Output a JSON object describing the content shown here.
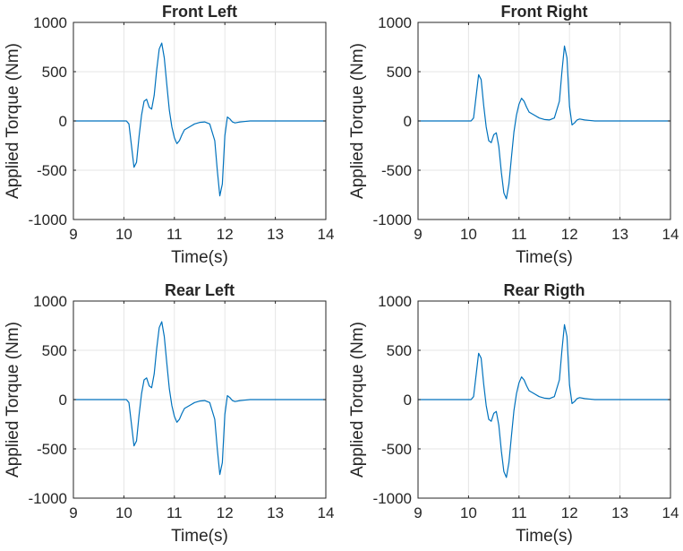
{
  "figure": {
    "background": "#ffffff"
  },
  "style": {
    "line_color": "#0072BD",
    "grid_color": "#e6e6e6",
    "axis_color": "#262626"
  },
  "chart_data": [
    {
      "type": "line",
      "title": "Front Left",
      "xlabel": "Time(s)",
      "ylabel": "Applied Torque (Nm)",
      "xlim": [
        9,
        14
      ],
      "ylim": [
        -1000,
        1000
      ],
      "xticks": [
        "9",
        "10",
        "11",
        "12",
        "13",
        "14"
      ],
      "yticks": [
        "1000",
        "500",
        "0",
        "-500",
        "-1000"
      ],
      "grid": true,
      "series": [
        {
          "x": [
            9,
            10.05,
            10.1,
            10.15,
            10.2,
            10.25,
            10.3,
            10.35,
            10.4,
            10.45,
            10.5,
            10.55,
            10.6,
            10.65,
            10.7,
            10.75,
            10.8,
            10.85,
            10.9,
            10.95,
            11.0,
            11.05,
            11.1,
            11.15,
            11.2,
            11.3,
            11.4,
            11.5,
            11.6,
            11.7,
            11.8,
            11.85,
            11.9,
            11.95,
            12.0,
            12.05,
            12.1,
            12.15,
            12.2,
            12.3,
            12.4,
            12.5,
            14
          ],
          "y": [
            0,
            0,
            -30,
            -250,
            -470,
            -420,
            -160,
            60,
            200,
            220,
            140,
            120,
            260,
            520,
            730,
            790,
            640,
            370,
            110,
            -60,
            -170,
            -230,
            -200,
            -140,
            -90,
            -60,
            -30,
            -15,
            -10,
            -30,
            -200,
            -500,
            -760,
            -640,
            -150,
            40,
            20,
            -10,
            -20,
            -10,
            -5,
            0,
            0
          ]
        }
      ]
    },
    {
      "type": "line",
      "title": "Front Right",
      "xlabel": "Time(s)",
      "ylabel": "Applied Torque (Nm)",
      "xlim": [
        9,
        14
      ],
      "ylim": [
        -1000,
        1000
      ],
      "xticks": [
        "9",
        "10",
        "11",
        "12",
        "13",
        "14"
      ],
      "yticks": [
        "1000",
        "500",
        "0",
        "-500",
        "-1000"
      ],
      "grid": true,
      "series": [
        {
          "x": [
            9,
            10.05,
            10.1,
            10.15,
            10.2,
            10.25,
            10.3,
            10.35,
            10.4,
            10.45,
            10.5,
            10.55,
            10.6,
            10.65,
            10.7,
            10.75,
            10.8,
            10.85,
            10.9,
            10.95,
            11.0,
            11.05,
            11.1,
            11.15,
            11.2,
            11.3,
            11.4,
            11.5,
            11.6,
            11.7,
            11.8,
            11.85,
            11.9,
            11.95,
            12.0,
            12.05,
            12.1,
            12.15,
            12.2,
            12.3,
            12.4,
            12.5,
            14
          ],
          "y": [
            0,
            0,
            30,
            250,
            470,
            420,
            160,
            -60,
            -200,
            -220,
            -140,
            -120,
            -260,
            -520,
            -730,
            -790,
            -640,
            -370,
            -110,
            60,
            170,
            230,
            200,
            140,
            90,
            60,
            30,
            15,
            10,
            30,
            200,
            500,
            760,
            640,
            150,
            -40,
            -20,
            10,
            20,
            10,
            5,
            0,
            0
          ]
        }
      ]
    },
    {
      "type": "line",
      "title": "Rear Left",
      "xlabel": "Time(s)",
      "ylabel": "Applied Torque (Nm)",
      "xlim": [
        9,
        14
      ],
      "ylim": [
        -1000,
        1000
      ],
      "xticks": [
        "9",
        "10",
        "11",
        "12",
        "13",
        "14"
      ],
      "yticks": [
        "1000",
        "500",
        "0",
        "-500",
        "-1000"
      ],
      "grid": true,
      "series": [
        {
          "x": [
            9,
            10.05,
            10.1,
            10.15,
            10.2,
            10.25,
            10.3,
            10.35,
            10.4,
            10.45,
            10.5,
            10.55,
            10.6,
            10.65,
            10.7,
            10.75,
            10.8,
            10.85,
            10.9,
            10.95,
            11.0,
            11.05,
            11.1,
            11.15,
            11.2,
            11.3,
            11.4,
            11.5,
            11.6,
            11.7,
            11.8,
            11.85,
            11.9,
            11.95,
            12.0,
            12.05,
            12.1,
            12.15,
            12.2,
            12.3,
            12.4,
            12.5,
            14
          ],
          "y": [
            0,
            0,
            -30,
            -250,
            -470,
            -420,
            -160,
            60,
            200,
            220,
            140,
            120,
            260,
            520,
            730,
            790,
            640,
            370,
            110,
            -60,
            -170,
            -230,
            -200,
            -140,
            -90,
            -60,
            -30,
            -15,
            -10,
            -30,
            -200,
            -500,
            -760,
            -640,
            -150,
            40,
            20,
            -10,
            -20,
            -10,
            -5,
            0,
            0
          ]
        }
      ]
    },
    {
      "type": "line",
      "title": "Rear Rigth",
      "xlabel": "Time(s)",
      "ylabel": "Applied Torque (Nm)",
      "xlim": [
        9,
        14
      ],
      "ylim": [
        -1000,
        1000
      ],
      "xticks": [
        "9",
        "10",
        "11",
        "12",
        "13",
        "14"
      ],
      "yticks": [
        "1000",
        "500",
        "0",
        "-500",
        "-1000"
      ],
      "grid": true,
      "series": [
        {
          "x": [
            9,
            10.05,
            10.1,
            10.15,
            10.2,
            10.25,
            10.3,
            10.35,
            10.4,
            10.45,
            10.5,
            10.55,
            10.6,
            10.65,
            10.7,
            10.75,
            10.8,
            10.85,
            10.9,
            10.95,
            11.0,
            11.05,
            11.1,
            11.15,
            11.2,
            11.3,
            11.4,
            11.5,
            11.6,
            11.7,
            11.8,
            11.85,
            11.9,
            11.95,
            12.0,
            12.05,
            12.1,
            12.15,
            12.2,
            12.3,
            12.4,
            12.5,
            14
          ],
          "y": [
            0,
            0,
            30,
            250,
            470,
            420,
            160,
            -60,
            -200,
            -220,
            -140,
            -120,
            -260,
            -520,
            -730,
            -790,
            -640,
            -370,
            -110,
            60,
            170,
            230,
            200,
            140,
            90,
            60,
            30,
            15,
            10,
            30,
            200,
            500,
            760,
            640,
            150,
            -40,
            -20,
            10,
            20,
            10,
            5,
            0,
            0
          ]
        }
      ]
    }
  ]
}
